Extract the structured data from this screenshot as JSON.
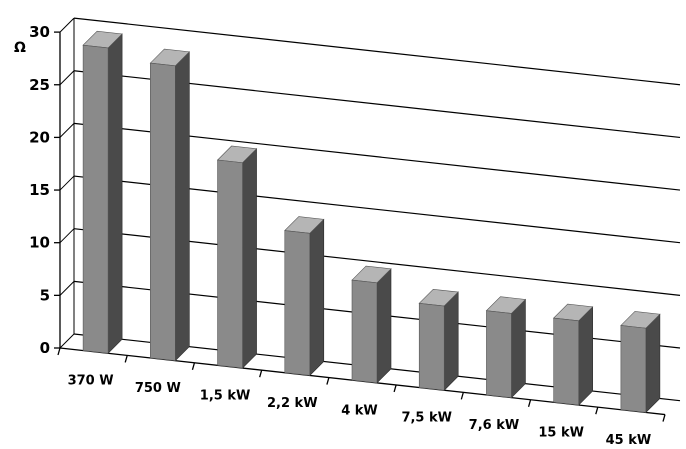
{
  "chart_data": {
    "type": "bar",
    "unit": "Ω",
    "categories": [
      "370 W",
      "750 W",
      "1,5 kW",
      "2,2 kW",
      "4 kW",
      "7,5 kW",
      "7,6 kW",
      "15 kW",
      "45 kW"
    ],
    "values": [
      29,
      28,
      19.5,
      13.5,
      9.5,
      8,
      8,
      8,
      8
    ],
    "yticks": [
      0,
      5,
      10,
      15,
      20,
      25,
      30
    ],
    "ylim": [
      0,
      30
    ],
    "grid": true,
    "legend": "none",
    "bar_style": "3d"
  },
  "colors": {
    "bar_front": "#8a8a8a",
    "bar_side": "#4a4a4a",
    "bar_top": "#b5b5b5",
    "axis": "#000000",
    "grid": "#000000"
  }
}
